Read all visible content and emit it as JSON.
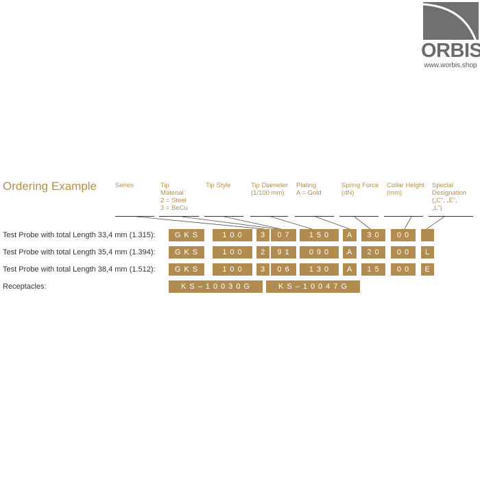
{
  "logo": {
    "brand": "ORBIS",
    "url": "www.worbis.shop"
  },
  "title": "Ordering Example",
  "headers": [
    "Series",
    "Tip\nMaterial\n2 = Steel\n3 = BeCu",
    "Tip Style",
    "Tip Diameter\n(1/100 mm)",
    "Plating\nA = Gold",
    "Spring Force\n(dN)",
    "Collar Height\n(mm)",
    "Special\nDesignation\n(„C“, „E“,\n„L“)"
  ],
  "rows": [
    {
      "label": "Test Probe with total Length 33,4 mm (1.315):",
      "cells": [
        "GKS",
        "100",
        "3",
        "07",
        "150",
        "A",
        "30",
        "00",
        ""
      ]
    },
    {
      "label": "Test Probe with total Length 35,4 mm (1.394):",
      "cells": [
        "GKS",
        "100",
        "2",
        "91",
        "090",
        "A",
        "20",
        "00",
        "L"
      ]
    },
    {
      "label": "Test Probe with total Length 38,4 mm (1.512):",
      "cells": [
        "GKS",
        "100",
        "3",
        "06",
        "130",
        "A",
        "15",
        "00",
        "E"
      ]
    }
  ],
  "receptacles": {
    "label": "Receptacles:",
    "items": [
      "KS–10030G",
      "KS–10047G"
    ]
  },
  "colors": {
    "gold": "#b18b50",
    "logo_gray": "#707070"
  }
}
